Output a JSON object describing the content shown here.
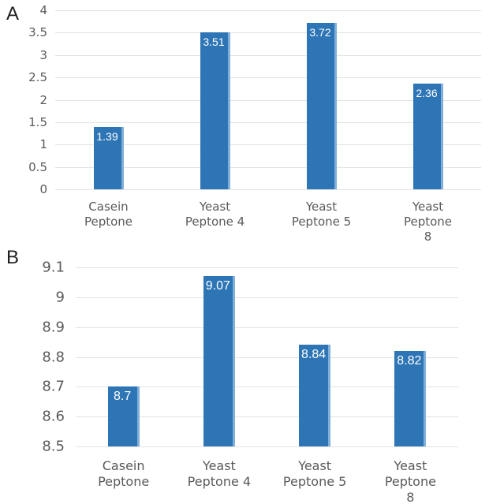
{
  "figure": {
    "panels": [
      {
        "label": "A"
      },
      {
        "label": "B"
      }
    ]
  },
  "chart_data": [
    {
      "type": "bar",
      "panel": "A",
      "title": "",
      "xlabel": "",
      "ylabel": "",
      "categories": [
        "Casein\nPeptone",
        "Yeast\nPeptone 4",
        "Yeast\nPeptone 5",
        "Yeast\nPeptone 8"
      ],
      "values": [
        1.39,
        3.51,
        3.72,
        2.36
      ],
      "bar_labels": [
        "1.39",
        "3.51",
        "3.72",
        "2.36"
      ],
      "ylim": [
        0,
        4
      ],
      "yticks": [
        4,
        3.5,
        3,
        2.5,
        2,
        1.5,
        1,
        0.5,
        0
      ],
      "ytick_labels": [
        "4",
        "3.5",
        "3",
        "2.5",
        "2",
        "1.5",
        "1",
        "0.5",
        "0"
      ],
      "grid": true,
      "legend": "none",
      "colors": {
        "bar": "#2e75b5",
        "bar_edge": "#7fb0dc",
        "value_label": "#ffffff",
        "axis_text": "#5a5a5a",
        "gridline": "#e2e2e2"
      }
    },
    {
      "type": "bar",
      "panel": "B",
      "title": "",
      "xlabel": "",
      "ylabel": "",
      "categories": [
        "Casein\nPeptone",
        "Yeast\nPeptone 4",
        "Yeast\nPeptone 5",
        "Yeast\nPeptone 8"
      ],
      "values": [
        8.7,
        9.07,
        8.84,
        8.82
      ],
      "bar_labels": [
        "8.7",
        "9.07",
        "8.84",
        "8.82"
      ],
      "ylim": [
        8.5,
        9.1
      ],
      "yticks": [
        9.1,
        9.0,
        8.9,
        8.8,
        8.7,
        8.6,
        8.5
      ],
      "ytick_labels": [
        "9.1",
        "9",
        "8.9",
        "8.8",
        "8.7",
        "8.6",
        "8.5"
      ],
      "grid": true,
      "legend": "none",
      "colors": {
        "bar": "#2e75b5",
        "bar_edge": "#7fb0dc",
        "value_label": "#ffffff",
        "axis_text": "#5a5a5a",
        "gridline": "#e2e2e2"
      }
    }
  ]
}
